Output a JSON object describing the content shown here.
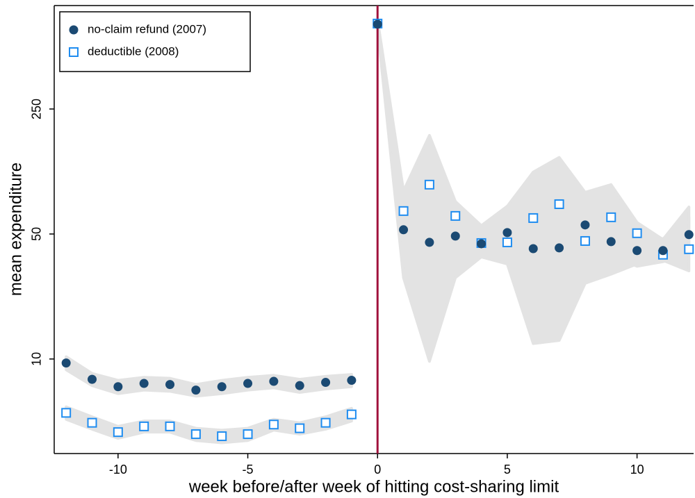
{
  "chart_data": {
    "type": "scatter",
    "xlabel": "week before/after week of hitting cost-sharing limit",
    "ylabel": "mean expenditure",
    "x": [
      -12,
      -11,
      -10,
      -9,
      -8,
      -7,
      -6,
      -5,
      -4,
      -3,
      -2,
      -1,
      0,
      1,
      2,
      3,
      4,
      5,
      6,
      7,
      8,
      9,
      10,
      11,
      12
    ],
    "series": [
      {
        "name": "no-claim refund (2007)",
        "color": "#1b4a73",
        "marker": "circle",
        "values": [
          9.5,
          7.7,
          7.0,
          7.3,
          7.2,
          6.7,
          7.0,
          7.3,
          7.5,
          7.1,
          7.4,
          7.6,
          745,
          52.8,
          44.9,
          48.7,
          44.1,
          50.9,
          41.4,
          41.8,
          56.2,
          45.3,
          40.4,
          40.4,
          49.6
        ],
        "lower": [
          8.7,
          7.1,
          6.4,
          6.7,
          6.6,
          6.2,
          6.4,
          6.7,
          6.9,
          6.5,
          6.8,
          7.0,
          720,
          40,
          35,
          40,
          38,
          42,
          33,
          33,
          36,
          38,
          33,
          35,
          38
        ],
        "upper": [
          10.3,
          8.3,
          7.6,
          7.9,
          7.8,
          7.2,
          7.6,
          7.9,
          8.1,
          7.7,
          8.0,
          8.2,
          770,
          68,
          58,
          60,
          52,
          62,
          52,
          54,
          85,
          55,
          50,
          47,
          62
        ]
      },
      {
        "name": "deductible (2008)",
        "color": "#1e8cf0",
        "marker": "square",
        "values": [
          5.0,
          4.4,
          3.9,
          4.2,
          4.2,
          3.8,
          3.7,
          3.8,
          4.3,
          4.1,
          4.4,
          4.9,
          751,
          67.2,
          94.4,
          63.1,
          44.5,
          44.9,
          61.4,
          73.4,
          45.7,
          62.0,
          50.5,
          38.3,
          41.1
        ],
        "lower": [
          4.6,
          4.05,
          3.6,
          3.9,
          3.9,
          3.5,
          3.4,
          3.5,
          4.0,
          3.8,
          4.05,
          4.5,
          710,
          28.5,
          9.7,
          28.5,
          37.2,
          34,
          12.2,
          12.7,
          26.5,
          29.8,
          34,
          35.6,
          31.1
        ],
        "upper": [
          5.4,
          4.75,
          4.2,
          4.5,
          4.5,
          4.1,
          4.0,
          4.1,
          4.6,
          4.4,
          4.75,
          5.3,
          790,
          87,
          178,
          76,
          55.7,
          71.5,
          111,
          134,
          85.5,
          94.4,
          58,
          46.6,
          70.8
        ]
      }
    ],
    "band_color": "#e3e3e3",
    "vline": 0,
    "vline_color": "#a0123c",
    "xlim": [
      -12.46,
      12.18
    ],
    "xticks": [
      -10,
      -5,
      0,
      5,
      10
    ],
    "ylim": [
      2.96,
      947
    ],
    "yticks": [
      10,
      50,
      250
    ],
    "yscale": "log",
    "legend": "upper left"
  }
}
